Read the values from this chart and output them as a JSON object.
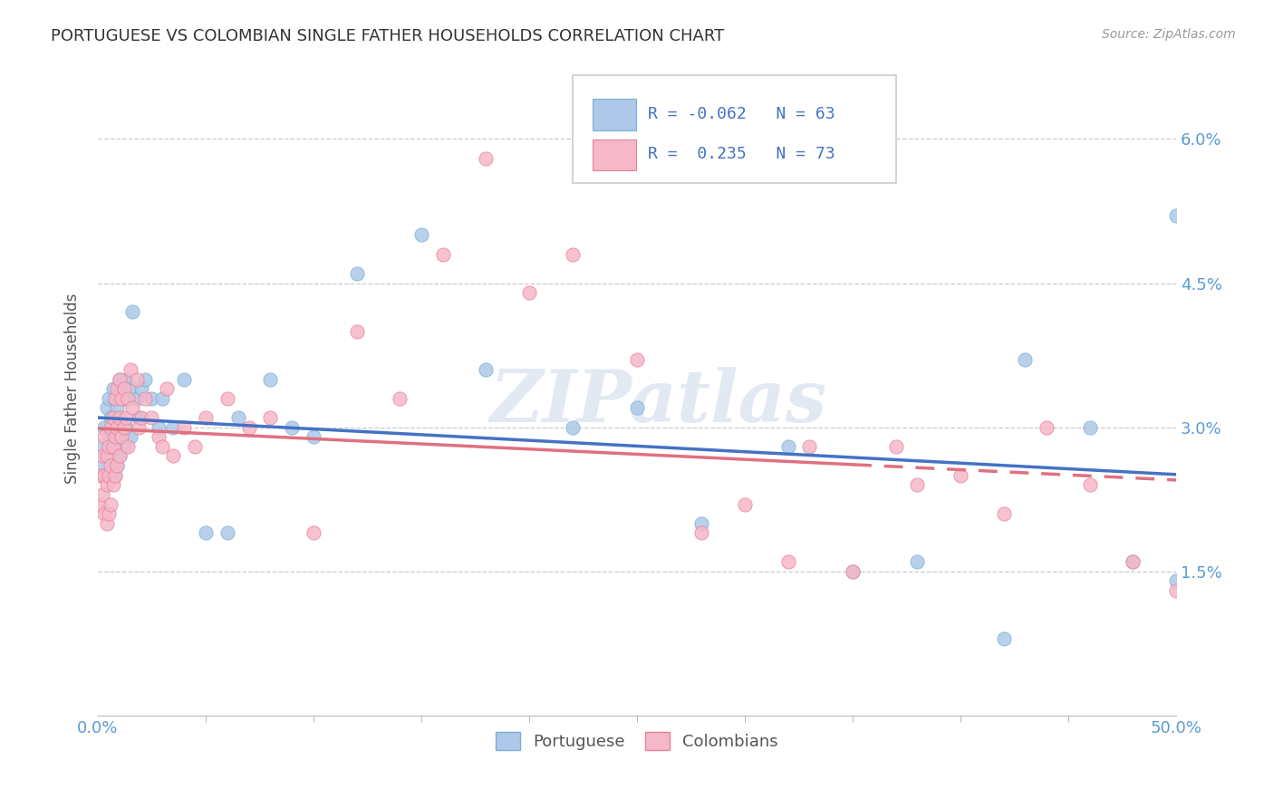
{
  "title": "PORTUGUESE VS COLOMBIAN SINGLE FATHER HOUSEHOLDS CORRELATION CHART",
  "source": "Source: ZipAtlas.com",
  "ylabel": "Single Father Households",
  "xlim": [
    0.0,
    0.5
  ],
  "ylim": [
    0.0,
    0.068
  ],
  "watermark": "ZIPatlas",
  "legend_r_portuguese": "-0.062",
  "legend_n_portuguese": "63",
  "legend_r_colombian": "0.235",
  "legend_n_colombian": "73",
  "color_portuguese_fill": "#adc8e8",
  "color_portuguese_edge": "#7aafd4",
  "color_colombian_fill": "#f5b8c8",
  "color_colombian_edge": "#e88098",
  "color_line_portuguese": "#4472c4",
  "color_line_colombian": "#e07080",
  "ytick_vals": [
    0.015,
    0.03,
    0.045,
    0.06
  ],
  "ytick_labels": [
    "1.5%",
    "3.0%",
    "4.5%",
    "6.0%"
  ],
  "portuguese_x": [
    0.001,
    0.002,
    0.003,
    0.003,
    0.004,
    0.004,
    0.005,
    0.005,
    0.005,
    0.006,
    0.006,
    0.007,
    0.007,
    0.007,
    0.008,
    0.008,
    0.008,
    0.009,
    0.009,
    0.009,
    0.01,
    0.01,
    0.01,
    0.011,
    0.011,
    0.012,
    0.012,
    0.013,
    0.013,
    0.014,
    0.015,
    0.015,
    0.016,
    0.018,
    0.019,
    0.02,
    0.022,
    0.025,
    0.028,
    0.03,
    0.035,
    0.04,
    0.05,
    0.06,
    0.065,
    0.08,
    0.09,
    0.1,
    0.12,
    0.15,
    0.18,
    0.22,
    0.25,
    0.28,
    0.32,
    0.35,
    0.38,
    0.42,
    0.43,
    0.46,
    0.48,
    0.5,
    0.5
  ],
  "portuguese_y": [
    0.028,
    0.026,
    0.03,
    0.025,
    0.032,
    0.027,
    0.033,
    0.029,
    0.025,
    0.031,
    0.027,
    0.034,
    0.03,
    0.026,
    0.033,
    0.028,
    0.025,
    0.032,
    0.029,
    0.026,
    0.035,
    0.03,
    0.027,
    0.034,
    0.029,
    0.033,
    0.028,
    0.035,
    0.03,
    0.033,
    0.034,
    0.029,
    0.042,
    0.033,
    0.031,
    0.034,
    0.035,
    0.033,
    0.03,
    0.033,
    0.03,
    0.035,
    0.019,
    0.019,
    0.031,
    0.035,
    0.03,
    0.029,
    0.046,
    0.05,
    0.036,
    0.03,
    0.032,
    0.02,
    0.028,
    0.015,
    0.016,
    0.008,
    0.037,
    0.03,
    0.016,
    0.052,
    0.014
  ],
  "colombian_x": [
    0.001,
    0.001,
    0.002,
    0.002,
    0.003,
    0.003,
    0.003,
    0.004,
    0.004,
    0.004,
    0.005,
    0.005,
    0.005,
    0.006,
    0.006,
    0.006,
    0.007,
    0.007,
    0.007,
    0.008,
    0.008,
    0.008,
    0.009,
    0.009,
    0.009,
    0.01,
    0.01,
    0.01,
    0.011,
    0.011,
    0.012,
    0.012,
    0.013,
    0.014,
    0.014,
    0.015,
    0.016,
    0.018,
    0.019,
    0.02,
    0.022,
    0.025,
    0.028,
    0.03,
    0.032,
    0.035,
    0.04,
    0.045,
    0.05,
    0.06,
    0.07,
    0.08,
    0.1,
    0.12,
    0.14,
    0.16,
    0.18,
    0.2,
    0.22,
    0.25,
    0.28,
    0.3,
    0.32,
    0.33,
    0.35,
    0.37,
    0.38,
    0.4,
    0.42,
    0.44,
    0.46,
    0.48,
    0.5
  ],
  "colombian_y": [
    0.025,
    0.022,
    0.027,
    0.023,
    0.029,
    0.025,
    0.021,
    0.027,
    0.024,
    0.02,
    0.028,
    0.025,
    0.021,
    0.03,
    0.026,
    0.022,
    0.031,
    0.028,
    0.024,
    0.033,
    0.029,
    0.025,
    0.034,
    0.03,
    0.026,
    0.035,
    0.031,
    0.027,
    0.033,
    0.029,
    0.034,
    0.03,
    0.031,
    0.033,
    0.028,
    0.036,
    0.032,
    0.035,
    0.03,
    0.031,
    0.033,
    0.031,
    0.029,
    0.028,
    0.034,
    0.027,
    0.03,
    0.028,
    0.031,
    0.033,
    0.03,
    0.031,
    0.019,
    0.04,
    0.033,
    0.048,
    0.058,
    0.044,
    0.048,
    0.037,
    0.019,
    0.022,
    0.016,
    0.028,
    0.015,
    0.028,
    0.024,
    0.025,
    0.021,
    0.03,
    0.024,
    0.016,
    0.013
  ]
}
